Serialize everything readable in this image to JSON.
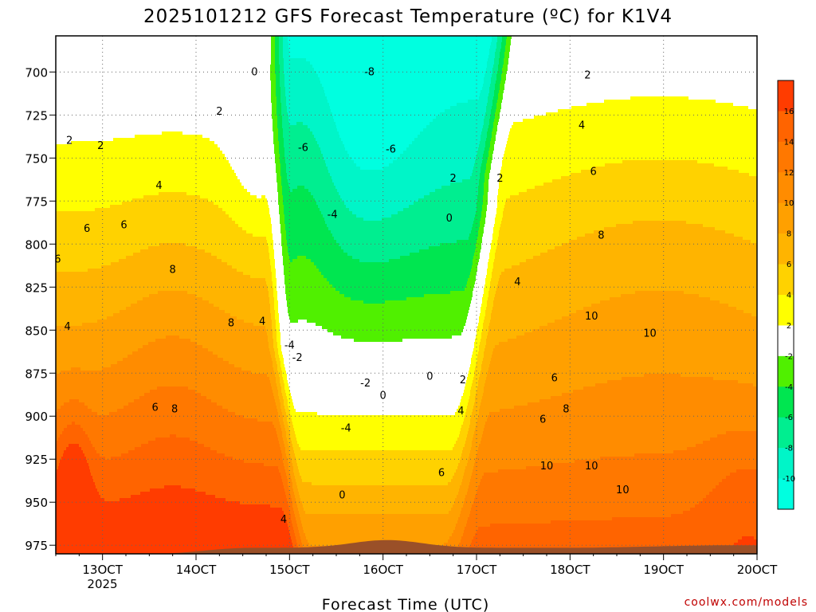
{
  "chart_data": {
    "type": "heatmap",
    "title": "2025101212 GFS Forecast Temperature (ºC) for K1V4",
    "xlabel": "Forecast Time (UTC)",
    "ylabel": "",
    "x_ticks": [
      "13OCT",
      "14OCT",
      "15OCT",
      "16OCT",
      "17OCT",
      "18OCT",
      "19OCT",
      "20OCT"
    ],
    "x_tick_hours": [
      12,
      36,
      60,
      84,
      108,
      132,
      156,
      180
    ],
    "x_sublabel": "2025",
    "x_range_hours": [
      0,
      180
    ],
    "y_ticks": [
      700,
      725,
      750,
      775,
      800,
      825,
      850,
      875,
      900,
      925,
      950,
      975
    ],
    "y_range_mb": [
      679,
      980
    ],
    "y_reversed": true,
    "grid": true,
    "colorbar": {
      "tick_labels": [
        "16",
        "14",
        "12",
        "10",
        "8",
        "6",
        "4",
        "2",
        "-2",
        "-4",
        "-6",
        "-8",
        "-10"
      ],
      "bins": [
        {
          "min": 16,
          "max": 18,
          "color": "#ff3c00"
        },
        {
          "min": 14,
          "max": 16,
          "color": "#ff6400"
        },
        {
          "min": 12,
          "max": 14,
          "color": "#ff7800"
        },
        {
          "min": 10,
          "max": 12,
          "color": "#ff8c00"
        },
        {
          "min": 8,
          "max": 10,
          "color": "#ffa000"
        },
        {
          "min": 6,
          "max": 8,
          "color": "#ffb400"
        },
        {
          "min": 4,
          "max": 6,
          "color": "#ffd200"
        },
        {
          "min": 2,
          "max": 4,
          "color": "#ffff00"
        },
        {
          "min": -2,
          "max": 2,
          "color": "#ffffff"
        },
        {
          "min": -4,
          "max": -2,
          "color": "#50f000"
        },
        {
          "min": -6,
          "max": -4,
          "color": "#00e650"
        },
        {
          "min": -8,
          "max": -6,
          "color": "#00ee90"
        },
        {
          "min": -10,
          "max": -8,
          "color": "#00f5c8"
        },
        {
          "min": -12,
          "max": -10,
          "color": "#00ffe0"
        }
      ]
    },
    "contour_labels": [
      {
        "text": "0",
        "hour": 51,
        "mb": 700
      },
      {
        "text": "2",
        "hour": 3.5,
        "mb": 740
      },
      {
        "text": "2",
        "hour": 11.5,
        "mb": 743
      },
      {
        "text": "2",
        "hour": 42,
        "mb": 723
      },
      {
        "text": "4",
        "hour": 26.5,
        "mb": 766
      },
      {
        "text": "6",
        "hour": 8,
        "mb": 791
      },
      {
        "text": "6",
        "hour": 17.5,
        "mb": 789
      },
      {
        "text": "6",
        "hour": 0.5,
        "mb": 809
      },
      {
        "text": "4",
        "hour": 3,
        "mb": 848
      },
      {
        "text": "8",
        "hour": 30,
        "mb": 815
      },
      {
        "text": "8",
        "hour": 45,
        "mb": 846
      },
      {
        "text": "4",
        "hour": 53,
        "mb": 845
      },
      {
        "text": "6",
        "hour": 25.5,
        "mb": 895
      },
      {
        "text": "8",
        "hour": 30.5,
        "mb": 896
      },
      {
        "text": "4",
        "hour": 58.5,
        "mb": 960
      },
      {
        "text": "-6",
        "hour": 63.5,
        "mb": 744
      },
      {
        "text": "-8",
        "hour": 80.5,
        "mb": 700
      },
      {
        "text": "-6",
        "hour": 86,
        "mb": 745
      },
      {
        "text": "-4",
        "hour": 71,
        "mb": 783
      },
      {
        "text": "-4",
        "hour": 60,
        "mb": 859
      },
      {
        "text": "-2",
        "hour": 62,
        "mb": 866
      },
      {
        "text": "-2",
        "hour": 79.5,
        "mb": 881
      },
      {
        "text": "-4",
        "hour": 74.5,
        "mb": 907
      },
      {
        "text": "0",
        "hour": 84,
        "mb": 888
      },
      {
        "text": "0",
        "hour": 73.5,
        "mb": 946
      },
      {
        "text": "2",
        "hour": 102,
        "mb": 762
      },
      {
        "text": "0",
        "hour": 101,
        "mb": 785
      },
      {
        "text": "2",
        "hour": 114,
        "mb": 762
      },
      {
        "text": "0",
        "hour": 96,
        "mb": 877
      },
      {
        "text": "2",
        "hour": 104.5,
        "mb": 879
      },
      {
        "text": "4",
        "hour": 104,
        "mb": 897
      },
      {
        "text": "6",
        "hour": 99,
        "mb": 933
      },
      {
        "text": "4",
        "hour": 118.5,
        "mb": 822
      },
      {
        "text": "2",
        "hour": 136.5,
        "mb": 702
      },
      {
        "text": "4",
        "hour": 135,
        "mb": 731
      },
      {
        "text": "6",
        "hour": 138,
        "mb": 758
      },
      {
        "text": "8",
        "hour": 140,
        "mb": 795
      },
      {
        "text": "10",
        "hour": 137.5,
        "mb": 842
      },
      {
        "text": "10",
        "hour": 152.5,
        "mb": 852
      },
      {
        "text": "6",
        "hour": 128,
        "mb": 878
      },
      {
        "text": "8",
        "hour": 131,
        "mb": 896
      },
      {
        "text": "6",
        "hour": 125,
        "mb": 902
      },
      {
        "text": "10",
        "hour": 126,
        "mb": 929
      },
      {
        "text": "10",
        "hour": 137.5,
        "mb": 929
      },
      {
        "text": "10",
        "hour": 145.5,
        "mb": 943
      }
    ]
  },
  "source": "coolwx.com/models"
}
